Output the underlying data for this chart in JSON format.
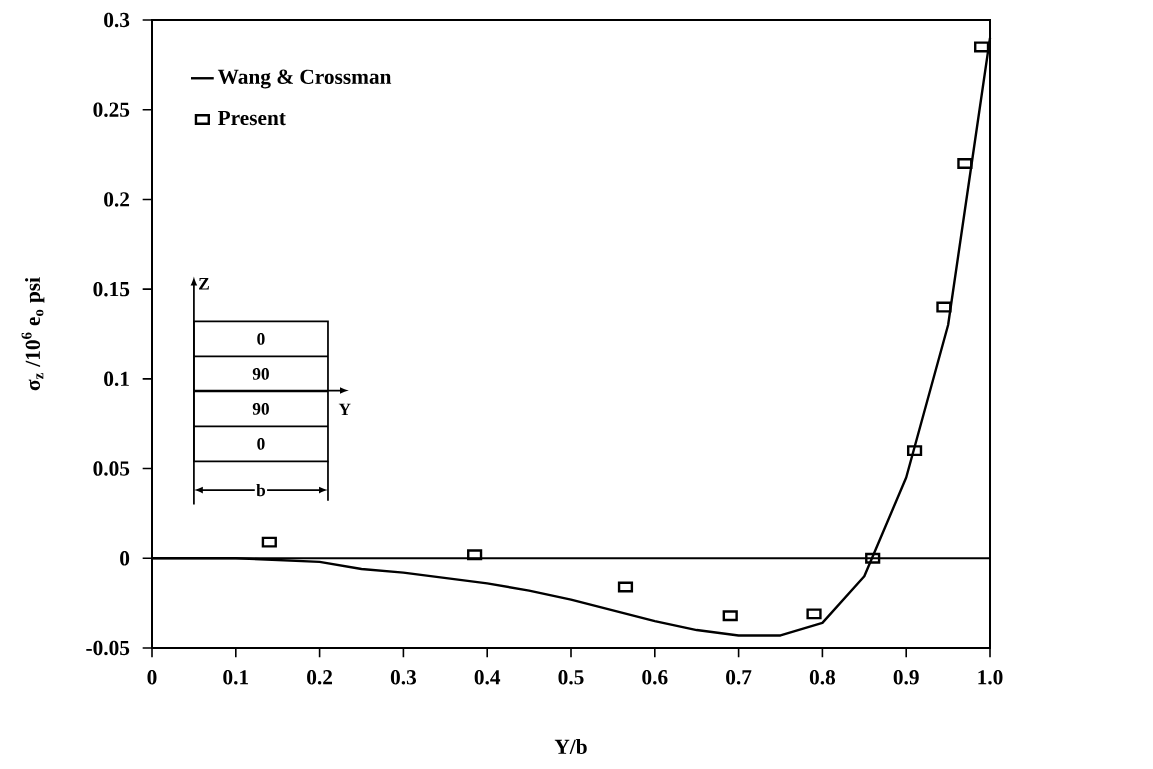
{
  "chart_data": {
    "type": "line",
    "xlabel": "Y/b",
    "ylabel": "σ$_{z}$ /10$^{6}$ e$_{o}$ psi",
    "xlim": [
      0,
      1
    ],
    "ylim": [
      -0.05,
      0.3
    ],
    "xticks": [
      0,
      0.1,
      0.2,
      0.3,
      0.4,
      0.5,
      0.6,
      0.7,
      0.8,
      0.9,
      {
        "value": 1,
        "label": "1.0"
      }
    ],
    "yticks": [
      -0.05,
      0,
      0.05,
      0.1,
      0.15,
      0.2,
      0.25,
      0.3
    ],
    "grid": false,
    "legend": "top left",
    "ref_lines": [
      {
        "axis": "y",
        "value": 0,
        "color": "#000000"
      }
    ],
    "annotations": [
      "0",
      "90",
      "90",
      "0",
      "Z",
      "Y",
      "b"
    ],
    "series": [
      {
        "name": "Wang & Crossman",
        "color": "#000000",
        "marker": "none",
        "x": [
          0,
          0.1,
          0.2,
          0.25,
          0.3,
          0.35,
          0.4,
          0.45,
          0.5,
          0.55,
          0.6,
          0.65,
          0.7,
          0.75,
          0.8,
          0.85,
          0.9,
          0.95,
          0.975,
          1.0
        ],
        "values": [
          0,
          0,
          -0.002,
          -0.006,
          -0.008,
          -0.011,
          -0.014,
          -0.018,
          -0.023,
          -0.029,
          -0.035,
          -0.04,
          -0.043,
          -0.043,
          -0.036,
          -0.01,
          0.045,
          0.13,
          0.21,
          0.29
        ]
      },
      {
        "name": "Present",
        "type": "scatter",
        "color": "#000000",
        "marker": "square",
        "x": [
          0.14,
          0.385,
          0.565,
          0.69,
          0.79,
          0.86,
          0.91,
          0.945,
          0.97,
          0.99
        ],
        "values": [
          0.009,
          0.002,
          -0.016,
          -0.032,
          -0.031,
          0,
          0.06,
          0.14,
          0.22,
          0.285
        ]
      }
    ]
  }
}
